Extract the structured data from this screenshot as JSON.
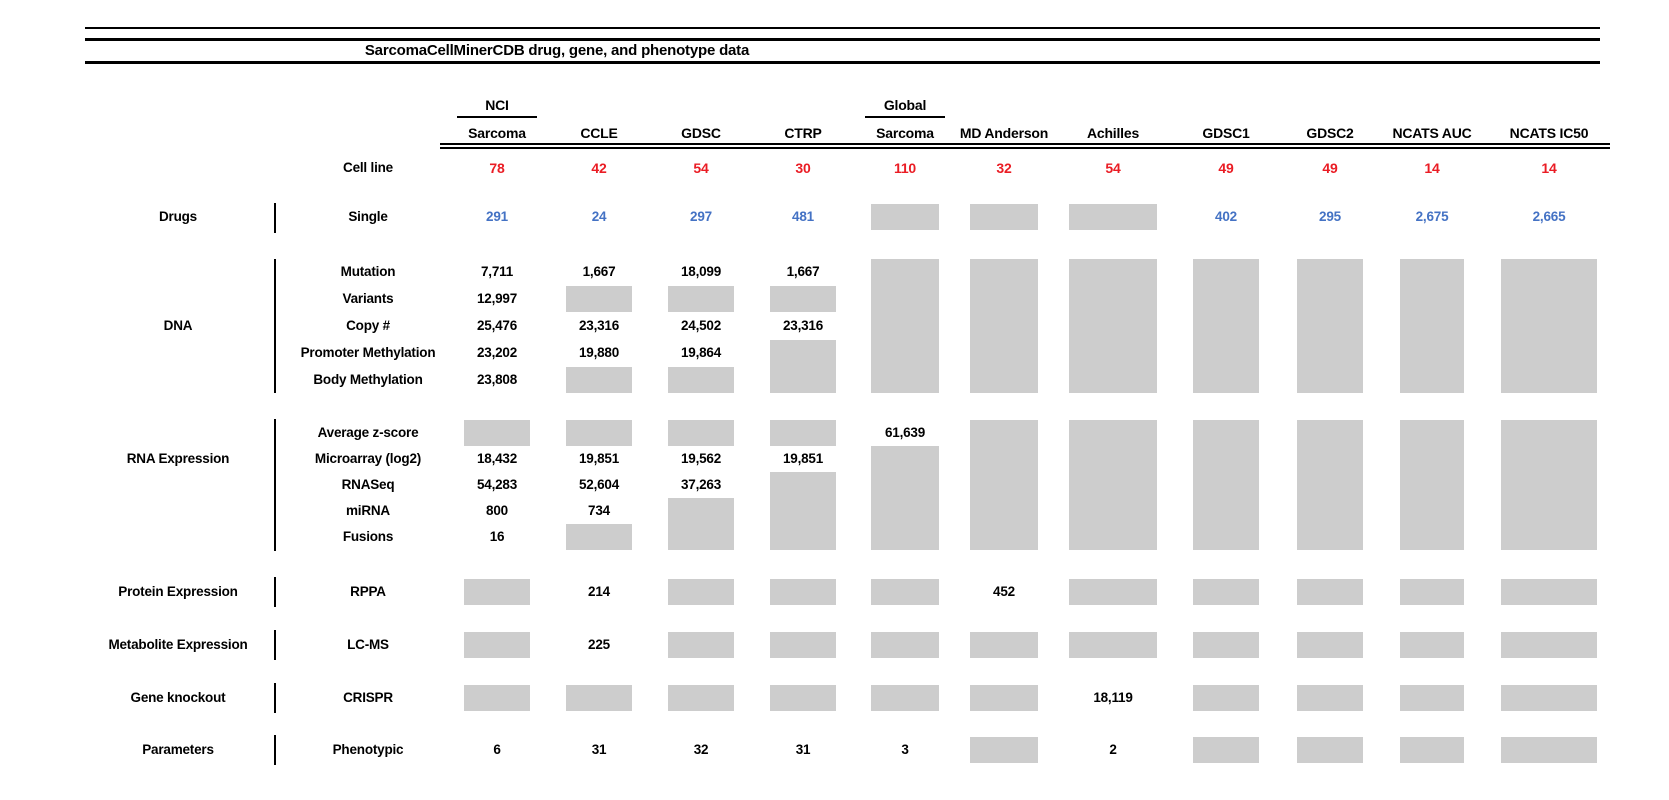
{
  "title": "SarcomaCellMinerCDB drug, gene, and phenotype data",
  "colors": {
    "count_red": "#ea1c24",
    "drug_blue": "#4472c4",
    "block_gray": "#cdcdcd",
    "line_black": "#000000"
  },
  "chart_data": {
    "type": "table",
    "title": "SarcomaCellMinerCDB drug, gene, and phenotype data",
    "cell_line_label": "Cell line",
    "columns": [
      {
        "id": "nci-sarcoma",
        "label_top": "NCI",
        "label": "Sarcoma",
        "cell_line": "78"
      },
      {
        "id": "ccle",
        "label": "CCLE",
        "cell_line": "42"
      },
      {
        "id": "gdsc",
        "label": "GDSC",
        "cell_line": "54"
      },
      {
        "id": "ctrp",
        "label": "CTRP",
        "cell_line": "30"
      },
      {
        "id": "global-sarcoma",
        "label_top": "Global",
        "label": "Sarcoma",
        "cell_line": "110"
      },
      {
        "id": "md-anderson",
        "label": "MD Anderson",
        "cell_line": "32"
      },
      {
        "id": "achilles",
        "label": "Achilles",
        "cell_line": "54"
      },
      {
        "id": "gdsc1",
        "label": "GDSC1",
        "cell_line": "49"
      },
      {
        "id": "gdsc2",
        "label": "GDSC2",
        "cell_line": "49"
      },
      {
        "id": "ncats-auc",
        "label": "NCATS AUC",
        "cell_line": "14"
      },
      {
        "id": "ncats-ic50",
        "label": "NCATS IC50",
        "cell_line": "14"
      }
    ],
    "sections": [
      {
        "category": "Drugs",
        "rows": [
          {
            "label": "Single",
            "style": "blue",
            "values": [
              "291",
              "24",
              "297",
              "481",
              null,
              null,
              null,
              "402",
              "295",
              "2,675",
              "2,665"
            ]
          }
        ]
      },
      {
        "category": "DNA",
        "rows": [
          {
            "label": "Mutation",
            "values": [
              "7,711",
              "1,667",
              "18,099",
              "1,667",
              null,
              null,
              null,
              null,
              null,
              null,
              null
            ]
          },
          {
            "label": "Variants",
            "values": [
              "12,997",
              null,
              null,
              null,
              null,
              null,
              null,
              null,
              null,
              null,
              null
            ]
          },
          {
            "label": "Copy #",
            "values": [
              "25,476",
              "23,316",
              "24,502",
              "23,316",
              null,
              null,
              null,
              null,
              null,
              null,
              null
            ]
          },
          {
            "label": "Promoter Methylation",
            "values": [
              "23,202",
              "19,880",
              "19,864",
              null,
              null,
              null,
              null,
              null,
              null,
              null,
              null
            ]
          },
          {
            "label": "Body Methylation",
            "values": [
              "23,808",
              null,
              null,
              null,
              null,
              null,
              null,
              null,
              null,
              null,
              null
            ]
          }
        ]
      },
      {
        "category": "RNA Expression",
        "rows": [
          {
            "label": "Average z-score",
            "values": [
              null,
              null,
              null,
              null,
              "61,639",
              null,
              null,
              null,
              null,
              null,
              null
            ]
          },
          {
            "label": "Microarray (log2)",
            "values": [
              "18,432",
              "19,851",
              "19,562",
              "19,851",
              null,
              null,
              null,
              null,
              null,
              null,
              null
            ]
          },
          {
            "label": "RNASeq",
            "values": [
              "54,283",
              "52,604",
              "37,263",
              null,
              null,
              null,
              null,
              null,
              null,
              null,
              null
            ]
          },
          {
            "label": "miRNA",
            "values": [
              "800",
              "734",
              null,
              null,
              null,
              null,
              null,
              null,
              null,
              null,
              null
            ]
          },
          {
            "label": "Fusions",
            "values": [
              "16",
              null,
              null,
              null,
              null,
              null,
              null,
              null,
              null,
              null,
              null
            ]
          }
        ]
      },
      {
        "category": "Protein Expression",
        "rows": [
          {
            "label": "RPPA",
            "values": [
              null,
              "214",
              null,
              null,
              null,
              "452",
              null,
              null,
              null,
              null,
              null
            ]
          }
        ]
      },
      {
        "category": "Metabolite Expression",
        "rows": [
          {
            "label": "LC-MS",
            "values": [
              null,
              "225",
              null,
              null,
              null,
              null,
              null,
              null,
              null,
              null,
              null
            ]
          }
        ]
      },
      {
        "category": "Gene knockout",
        "rows": [
          {
            "label": "CRISPR",
            "values": [
              null,
              null,
              null,
              null,
              null,
              null,
              "18,119",
              null,
              null,
              null,
              null
            ]
          }
        ]
      },
      {
        "category": "Parameters",
        "rows": [
          {
            "label": "Phenotypic",
            "values": [
              "6",
              "31",
              "32",
              "31",
              "3",
              null,
              "2",
              null,
              null,
              null,
              null
            ]
          }
        ]
      }
    ]
  }
}
